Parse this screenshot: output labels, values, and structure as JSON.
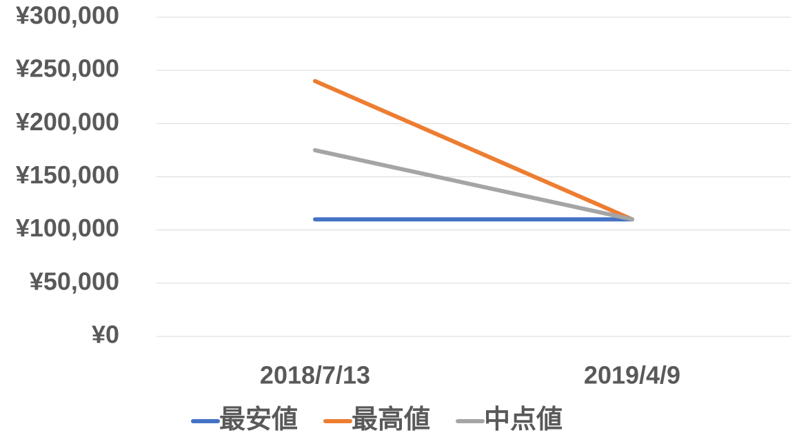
{
  "chart_data": {
    "type": "line",
    "categories": [
      "2018/7/13",
      "2019/4/9"
    ],
    "series": [
      {
        "name": "最安値",
        "color": "#4472c4",
        "values": [
          110000,
          110000
        ]
      },
      {
        "name": "最高値",
        "color": "#ed7d31",
        "values": [
          240000,
          110000
        ]
      },
      {
        "name": "中点値",
        "color": "#a5a5a5",
        "values": [
          175000,
          110000
        ]
      }
    ],
    "ylim": [
      0,
      300000
    ],
    "yticks": [
      {
        "value": 0,
        "label": "¥0"
      },
      {
        "value": 50000,
        "label": "¥50,000"
      },
      {
        "value": 100000,
        "label": "¥100,000"
      },
      {
        "value": 150000,
        "label": "¥150,000"
      },
      {
        "value": 200000,
        "label": "¥200,000"
      },
      {
        "value": 250000,
        "label": "¥250,000"
      },
      {
        "value": 300000,
        "label": "¥300,000"
      }
    ],
    "grid": true,
    "legend": "bottom"
  }
}
